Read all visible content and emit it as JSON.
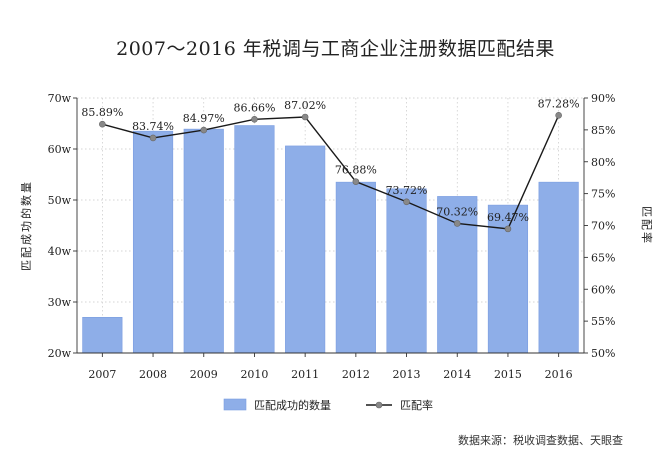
{
  "chart_data": {
    "type": "bar",
    "title": "2007～2016 年税调与工商企业注册数据匹配结果",
    "categories": [
      "2007",
      "2008",
      "2009",
      "2010",
      "2011",
      "2012",
      "2013",
      "2014",
      "2015",
      "2016"
    ],
    "series": [
      {
        "name": "匹配成功的数量",
        "type": "bar",
        "axis": "left",
        "values": [
          27,
          63.5,
          63.9,
          64.6,
          60.6,
          53.5,
          52.2,
          50.7,
          49.0,
          53.5
        ]
      },
      {
        "name": "匹配率",
        "type": "line",
        "axis": "right",
        "values": [
          85.89,
          83.74,
          84.97,
          86.66,
          87.02,
          76.88,
          73.72,
          70.32,
          69.47,
          87.28
        ],
        "labels": [
          "85.89%",
          "83.74%",
          "84.97%",
          "86.66%",
          "87.02%",
          "76.88%",
          "73.72%",
          "70.32%",
          "69.47%",
          "87.28%"
        ]
      }
    ],
    "ylabel": "匹配成功的数量",
    "y2label": "匹配率",
    "ylim": [
      20,
      70
    ],
    "y2lim": [
      50,
      90
    ],
    "yticks": [
      "20w",
      "30w",
      "40w",
      "50w",
      "60w",
      "70w"
    ],
    "y2ticks": [
      "50%",
      "55%",
      "60%",
      "65%",
      "70%",
      "75%",
      "80%",
      "85%",
      "90%"
    ],
    "grid": true,
    "legend": "bottom-center",
    "colors": {
      "bar": "#8eaee8",
      "bar_edge": "#7b9de0",
      "line": "#1a1a1a",
      "marker": "#888888"
    },
    "source": "数据来源：税收调查数据、天眼查"
  }
}
